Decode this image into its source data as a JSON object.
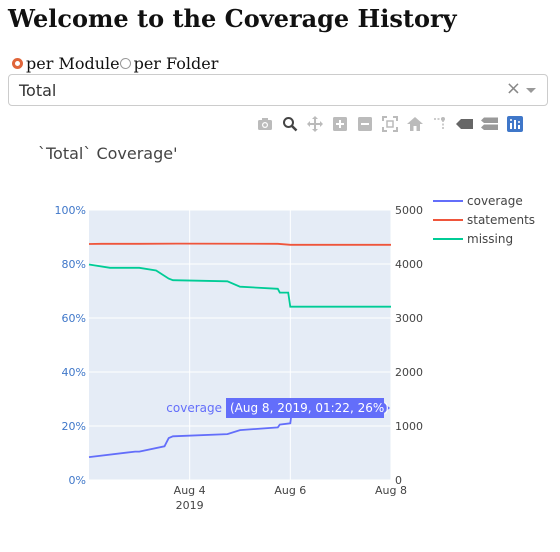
{
  "page": {
    "title": "Welcome to the Coverage History"
  },
  "mode_radio": {
    "options": [
      {
        "label": "per Module",
        "checked": true
      },
      {
        "label": "per Folder",
        "checked": false
      }
    ]
  },
  "dropdown": {
    "value": "Total",
    "clear_icon": "close-icon",
    "arrow_icon": "chevron-down-icon"
  },
  "modebar": {
    "buttons": [
      "camera-icon",
      "zoom-icon",
      "pan-icon",
      "zoom-in-icon",
      "zoom-out-icon",
      "autoscale-icon",
      "reset-axes-icon",
      "spike-lines-icon",
      "hover-closest-icon",
      "hover-compare-icon",
      "plotly-logo-icon"
    ]
  },
  "colors": {
    "coverage": "#636efa",
    "statements": "#ef553b",
    "missing": "#00cc96",
    "plot_bg": "#e5ecf6",
    "radio_accent": "#e0653a",
    "tooltip_bg": "#636efa"
  },
  "chart_data": {
    "type": "line",
    "title": "`Total` Coverage'",
    "xlabel": "",
    "x_tick_labels": [
      "Aug 4",
      "Aug 6",
      "Aug 8"
    ],
    "x_year_label": "2019",
    "x_range": [
      "2019-08-02 00:00",
      "2019-08-08 00:00"
    ],
    "y_left": {
      "range": [
        0,
        100
      ],
      "ticks": [
        0,
        20,
        40,
        60,
        80,
        100
      ],
      "tick_labels": [
        "0%",
        "20%",
        "40%",
        "60%",
        "80%",
        "100%"
      ]
    },
    "y_right": {
      "range": [
        0,
        5000
      ],
      "ticks": [
        0,
        1000,
        2000,
        3000,
        4000,
        5000
      ],
      "tick_labels": [
        "0",
        "1000",
        "2000",
        "3000",
        "4000",
        "5000"
      ]
    },
    "grid": true,
    "legend": {
      "position": "top-right",
      "entries": [
        "coverage",
        "statements",
        "missing"
      ]
    },
    "series": [
      {
        "name": "coverage",
        "axis": "left",
        "x": [
          "2019-08-02 00:00",
          "2019-08-02 22:00",
          "2019-08-03 00:00",
          "2019-08-03 12:00",
          "2019-08-03 14:00",
          "2019-08-03 16:00",
          "2019-08-04 18:00",
          "2019-08-05 00:00",
          "2019-08-05 18:00",
          "2019-08-05 19:00",
          "2019-08-06 00:00",
          "2019-08-06 00:20"
        ],
        "y": [
          8.5,
          10.5,
          10.5,
          12.5,
          15.5,
          16.2,
          17.0,
          18.5,
          19.5,
          20.5,
          21.0,
          23.0
        ]
      },
      {
        "name": "statements",
        "axis": "right",
        "x": [
          "2019-08-02 00:00",
          "2019-08-02 06:00",
          "2019-08-03 00:00",
          "2019-08-03 18:00",
          "2019-08-05 18:00",
          "2019-08-06 00:00",
          "2019-08-08 00:00"
        ],
        "y": [
          4370,
          4375,
          4375,
          4378,
          4375,
          4355,
          4355
        ]
      },
      {
        "name": "missing",
        "axis": "right",
        "x": [
          "2019-08-02 00:00",
          "2019-08-02 10:00",
          "2019-08-03 00:00",
          "2019-08-03 08:00",
          "2019-08-03 14:00",
          "2019-08-03 16:00",
          "2019-08-04 18:00",
          "2019-08-05 00:00",
          "2019-08-05 18:00",
          "2019-08-05 19:00",
          "2019-08-05 23:00",
          "2019-08-06 00:00",
          "2019-08-08 00:00"
        ],
        "y": [
          3990,
          3930,
          3930,
          3880,
          3730,
          3700,
          3680,
          3580,
          3540,
          3470,
          3470,
          3210,
          3210
        ]
      }
    ],
    "hover": {
      "series": "coverage",
      "label": "coverage",
      "text": "(Aug 8, 2019, 01:22, 26%)"
    }
  }
}
